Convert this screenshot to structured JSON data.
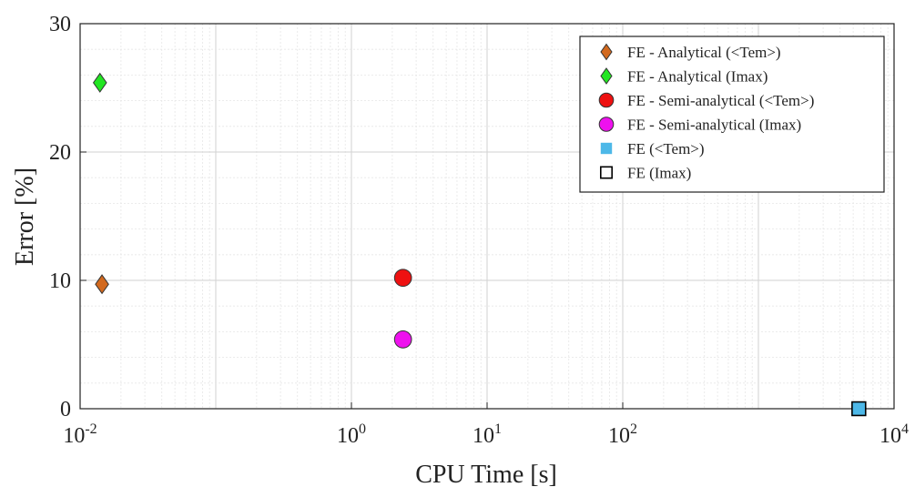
{
  "chart_data": {
    "type": "scatter",
    "title": "",
    "xlabel": "CPU Time [s]",
    "ylabel": "Error [%]",
    "xscale": "log",
    "xlim": [
      0.01,
      10000
    ],
    "ylim": [
      0,
      30
    ],
    "grid": true,
    "legend_position": "top-right",
    "xticks": [
      {
        "base": "10",
        "exp": "-2"
      },
      {
        "base": "10",
        "exp": "0"
      },
      {
        "base": "10",
        "exp": "1"
      },
      {
        "base": "10",
        "exp": "2"
      },
      {
        "base": "10",
        "exp": "4"
      }
    ],
    "yticks": [
      "0",
      "10",
      "20",
      "30"
    ],
    "series": [
      {
        "name": "FE - Analytical (<Tem>)",
        "marker": "diamond",
        "color": "#d2691e",
        "x": [
          0.0145
        ],
        "y": [
          9.7
        ]
      },
      {
        "name": "FE - Analytical (Imax)",
        "marker": "diamond",
        "color": "#22e622",
        "x": [
          0.014
        ],
        "y": [
          25.4
        ]
      },
      {
        "name": "FE - Semi-analytical (<Tem>)",
        "marker": "circle",
        "color": "#ee1111",
        "x": [
          2.4
        ],
        "y": [
          10.2
        ]
      },
      {
        "name": "FE - Semi-analytical (Imax)",
        "marker": "circle",
        "color": "#ee11ee",
        "x": [
          2.4
        ],
        "y": [
          5.4
        ]
      },
      {
        "name": "FE (<Tem>)",
        "marker": "square",
        "color": "#4db8e8",
        "x": [
          5500
        ],
        "y": [
          0
        ]
      },
      {
        "name": "FE (Imax)",
        "marker": "square-open",
        "color": "#000000",
        "x": [
          5500
        ],
        "y": [
          0
        ]
      }
    ]
  }
}
